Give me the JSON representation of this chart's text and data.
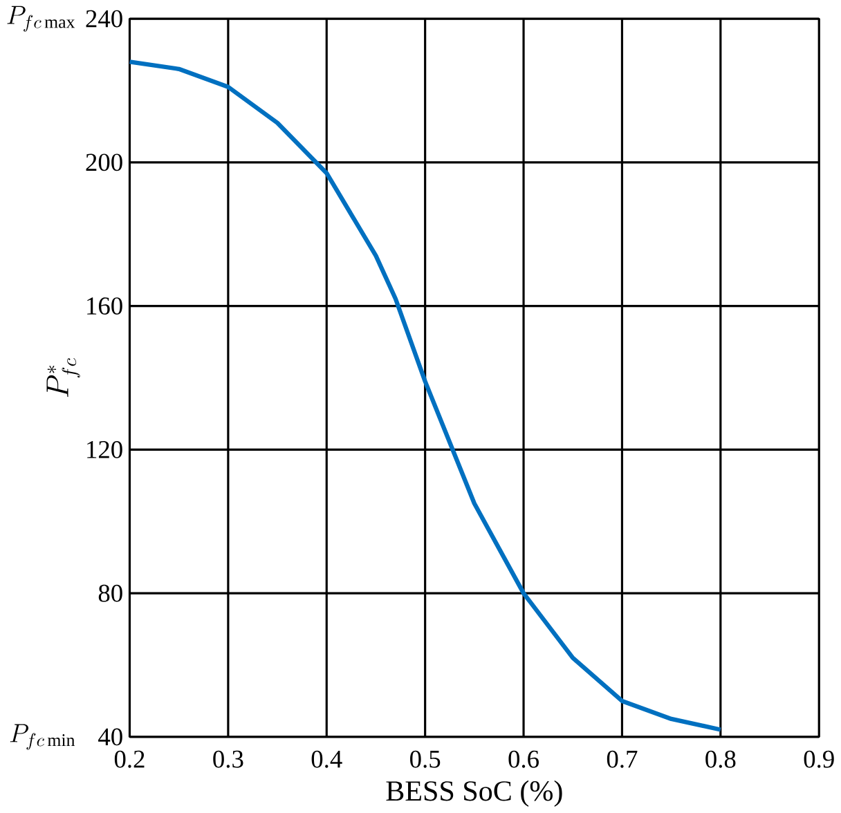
{
  "chart_data": {
    "type": "line",
    "xlabel": "BESS SoC (%)",
    "ylabel": "P^{*}_{fc}",
    "annotations": [
      "P_{fc\\max}",
      "P_{fc\\min}"
    ],
    "x": [
      0.2,
      0.25,
      0.3,
      0.35,
      0.4,
      0.45,
      0.47,
      0.5,
      0.55,
      0.6,
      0.65,
      0.7,
      0.75,
      0.8
    ],
    "series": [
      {
        "color": "#0070c0",
        "values": [
          228,
          226,
          221,
          211,
          197,
          174,
          162,
          139,
          105,
          80,
          62,
          50,
          45,
          42
        ]
      }
    ],
    "xlim": [
      0.2,
      0.9
    ],
    "xticks": [
      0.2,
      0.3,
      0.4,
      0.5,
      0.6,
      0.7,
      0.8,
      0.9
    ],
    "ylim": [
      40,
      240
    ],
    "yticks": [
      40,
      80,
      120,
      160,
      200,
      240
    ],
    "grid": true,
    "marker": "none",
    "line_style": "solid"
  }
}
